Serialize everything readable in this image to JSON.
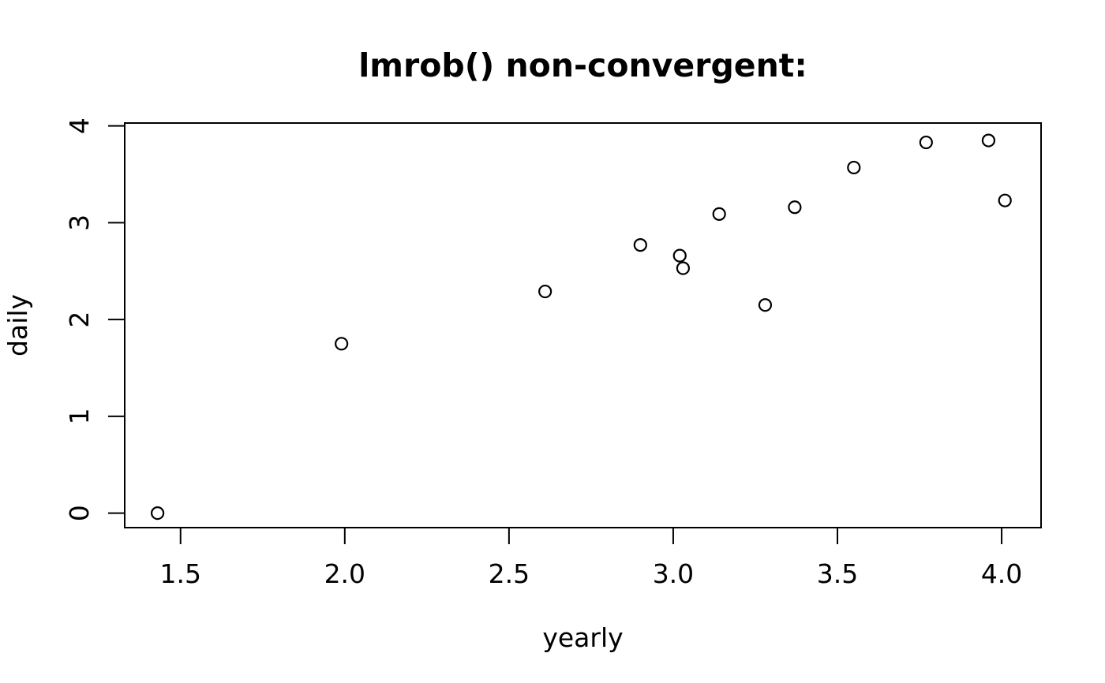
{
  "chart_data": {
    "type": "scatter",
    "title": "lmrob() non-convergent:",
    "xlabel": "yearly",
    "ylabel": "daily",
    "x": [
      1.43,
      1.99,
      2.61,
      2.9,
      3.02,
      3.03,
      3.14,
      3.28,
      3.37,
      3.55,
      3.77,
      3.96,
      4.01
    ],
    "y": [
      0.0,
      1.75,
      2.29,
      2.77,
      2.66,
      2.53,
      3.09,
      2.15,
      3.16,
      3.57,
      3.83,
      3.85,
      3.23
    ],
    "xlim": [
      1.33,
      4.12
    ],
    "ylim": [
      -0.15,
      4.03
    ],
    "x_tick_values": [
      1.5,
      2.0,
      2.5,
      3.0,
      3.5,
      4.0
    ],
    "x_tick_labels": [
      "1.5",
      "2.0",
      "2.5",
      "3.0",
      "3.5",
      "4.0"
    ],
    "y_tick_values": [
      0,
      1,
      2,
      3,
      4
    ],
    "y_tick_labels": [
      "0",
      "1",
      "2",
      "3",
      "4"
    ],
    "legend": "none",
    "grid": false,
    "marker": "open-circle",
    "marker_color": "#000000",
    "axis_color": "#000000",
    "background_color": "#ffffff"
  }
}
